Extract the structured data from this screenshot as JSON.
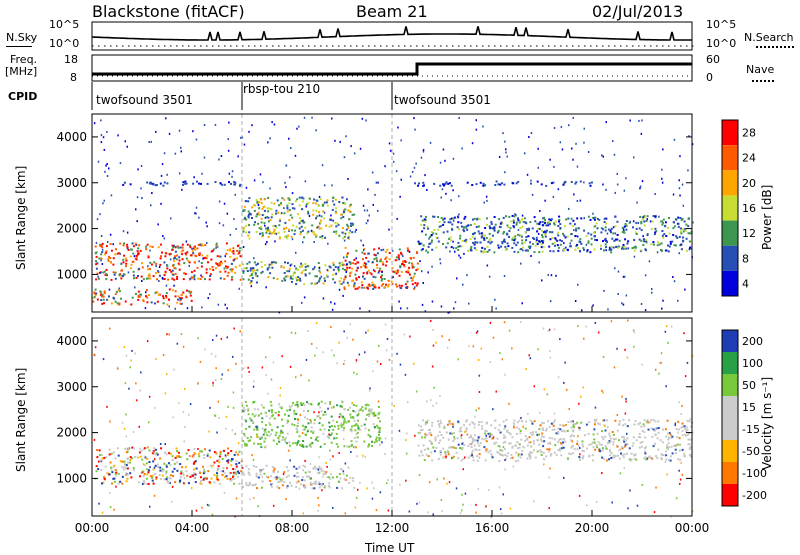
{
  "header": {
    "radar": "Blackstone (fitACF)",
    "beam": "Beam 21",
    "date": "02/Jul/2013"
  },
  "sky_panel": {
    "left_label": "N.Sky",
    "right_label": "N.Search",
    "left_ticks": [
      "10^5",
      "10^0"
    ],
    "right_ticks": [
      "10^5",
      "10^0"
    ]
  },
  "freq_panel": {
    "left_label_line1": "Freq.",
    "left_label_line2": "[MHz]",
    "right_label": "Nave",
    "left_ticks": [
      "18",
      "8"
    ],
    "right_ticks": [
      "60",
      "0"
    ]
  },
  "cpid": {
    "label": "CPID",
    "segments": [
      {
        "name": "twofsound 3501",
        "start": 0,
        "end": 6
      },
      {
        "name": "rbsp-tou 210",
        "start": 6,
        "end": 12
      },
      {
        "name": "twofsound 3501",
        "start": 12,
        "end": 24
      }
    ]
  },
  "power_colorbar": {
    "label": "Power [dB]",
    "ticks": [
      "28",
      "24",
      "20",
      "16",
      "12",
      "8",
      "4"
    ],
    "colors": [
      "#ff0000",
      "#ff5a00",
      "#ffa500",
      "#c8dc32",
      "#3c9650",
      "#2850b4",
      "#0000dc"
    ]
  },
  "velocity_colorbar": {
    "label": "Velocity [m s⁻¹]",
    "ticks": [
      "200",
      "100",
      "50",
      "15",
      "-15",
      "-50",
      "-100",
      "-200"
    ],
    "colors": [
      "#1e3cb4",
      "#28a046",
      "#78c83c",
      "#cccccc",
      "#cccccc",
      "#ffb400",
      "#ff7800",
      "#ff0000"
    ]
  },
  "chart_data": [
    {
      "type": "heatmap",
      "name": "power",
      "ylabel": "Slant Range [km]",
      "xlim": [
        0,
        24
      ],
      "ylim": [
        180,
        4500
      ],
      "yticks": [
        1000,
        2000,
        3000,
        4000
      ],
      "xticks": [
        "00:00",
        "04:00",
        "08:00",
        "12:00",
        "16:00",
        "20:00",
        "00:00"
      ],
      "bands": [
        {
          "t0": 0.1,
          "t1": 6.0,
          "r0": 900,
          "r1": 1700,
          "level": "high"
        },
        {
          "t0": 0.0,
          "t1": 4.0,
          "r0": 350,
          "r1": 700,
          "level": "high"
        },
        {
          "t0": 6.0,
          "t1": 10.5,
          "r0": 800,
          "r1": 1300,
          "level": "mid"
        },
        {
          "t0": 6.0,
          "t1": 10.5,
          "r0": 1800,
          "r1": 2700,
          "level": "mid"
        },
        {
          "t0": 10.0,
          "t1": 13.0,
          "r0": 700,
          "r1": 1600,
          "level": "high"
        },
        {
          "t0": 13.0,
          "t1": 24.0,
          "r0": 1500,
          "r1": 2300,
          "level": "low-mid"
        },
        {
          "t0": 0.5,
          "t1": 6.0,
          "r0": 2950,
          "r1": 3050,
          "level": "low"
        },
        {
          "t0": 13.0,
          "t1": 20.0,
          "r0": 2950,
          "r1": 3050,
          "level": "low"
        }
      ]
    },
    {
      "type": "heatmap",
      "name": "velocity",
      "ylabel": "Slant Range [km]",
      "xlabel": "Time UT",
      "xlim": [
        0,
        24
      ],
      "ylim": [
        180,
        4500
      ],
      "yticks": [
        1000,
        2000,
        3000,
        4000
      ],
      "xticks": [
        "00:00",
        "04:00",
        "08:00",
        "12:00",
        "16:00",
        "20:00",
        "00:00"
      ],
      "bands": [
        {
          "t0": 0.1,
          "t1": 6.0,
          "r0": 900,
          "r1": 1700,
          "level": "mixed"
        },
        {
          "t0": 6.0,
          "t1": 10.5,
          "r0": 800,
          "r1": 1300,
          "level": "ground"
        },
        {
          "t0": 6.0,
          "t1": 11.5,
          "r0": 1700,
          "r1": 2700,
          "level": "green"
        },
        {
          "t0": 13.0,
          "t1": 24.0,
          "r0": 1400,
          "r1": 2300,
          "level": "ground"
        }
      ]
    }
  ]
}
